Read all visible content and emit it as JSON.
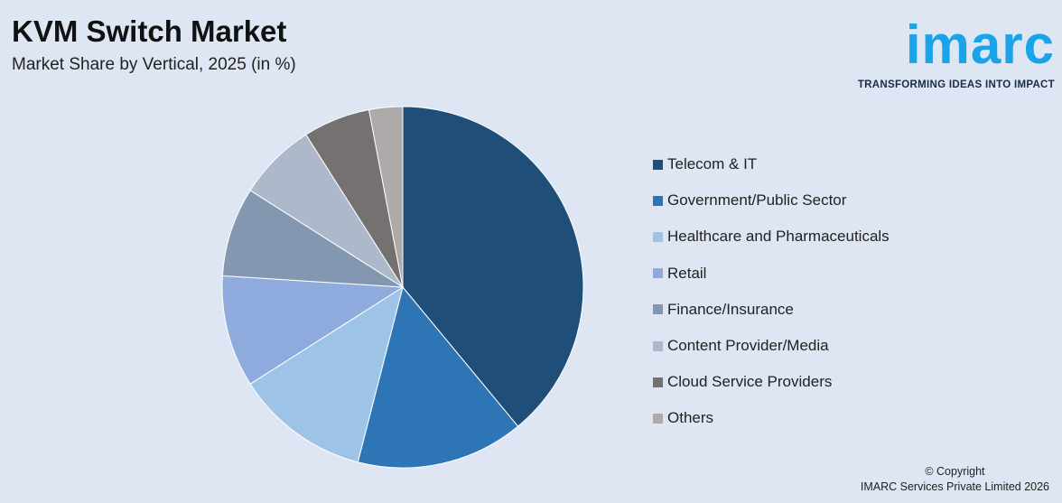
{
  "header": {
    "title": "KVM Switch Market",
    "subtitle": "Market Share by Vertical, 2025 (in %)"
  },
  "logo": {
    "word": "imarc",
    "tagline": "TRANSFORMING IDEAS INTO IMPACT"
  },
  "footer": {
    "copyright_line1": "© Copyright",
    "copyright_line2": "IMARC Services Private Limited 2026"
  },
  "chart_data": {
    "type": "pie",
    "legend_position": "right",
    "slices": [
      {
        "label": "Telecom & IT",
        "value": 39,
        "color": "#1f4e79"
      },
      {
        "label": "Government/Public Sector",
        "value": 15,
        "color": "#2e75b6"
      },
      {
        "label": "Healthcare and Pharmaceuticals",
        "value": 12,
        "color": "#9dc3e6"
      },
      {
        "label": "Retail",
        "value": 10,
        "color": "#8faadc"
      },
      {
        "label": "Finance/Insurance",
        "value": 8,
        "color": "#8497b0"
      },
      {
        "label": "Content Provider/Media",
        "value": 7,
        "color": "#adb9ca"
      },
      {
        "label": "Cloud Service Providers",
        "value": 6,
        "color": "#767171"
      },
      {
        "label": "Others",
        "value": 3,
        "color": "#aeaaaa"
      }
    ]
  }
}
